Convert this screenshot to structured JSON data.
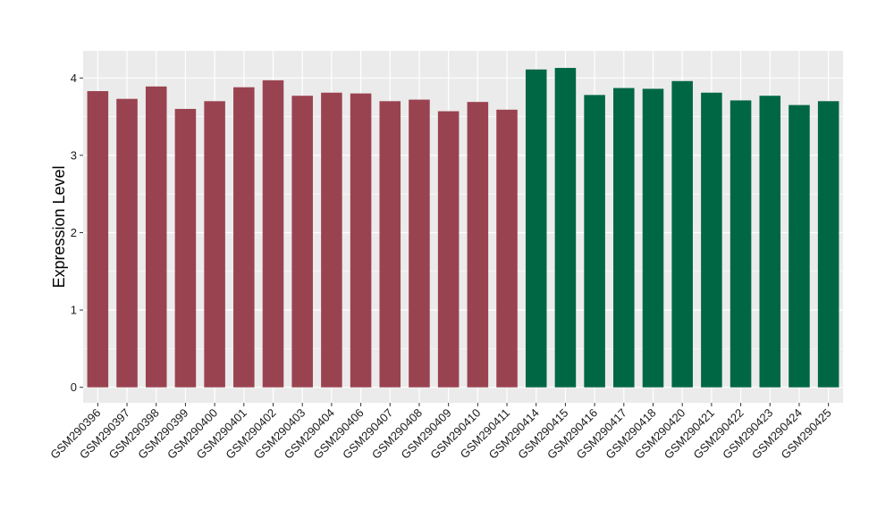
{
  "chart_data": {
    "type": "bar",
    "xlabel": "",
    "ylabel": "Expression Level",
    "ylim": [
      -0.2,
      4.35
    ],
    "yticks": [
      0,
      1,
      2,
      3,
      4
    ],
    "grid": true,
    "legend": "none",
    "colors": {
      "group1": "#9a4350",
      "group2": "#006744",
      "panel": "#ebebeb",
      "gridline": "#ffffff"
    },
    "categories": [
      "GSM290396",
      "GSM290397",
      "GSM290398",
      "GSM290399",
      "GSM290400",
      "GSM290401",
      "GSM290402",
      "GSM290403",
      "GSM290404",
      "GSM290406",
      "GSM290407",
      "GSM290408",
      "GSM290409",
      "GSM290410",
      "GSM290411",
      "GSM290414",
      "GSM290415",
      "GSM290416",
      "GSM290417",
      "GSM290418",
      "GSM290420",
      "GSM290421",
      "GSM290422",
      "GSM290423",
      "GSM290424",
      "GSM290425"
    ],
    "values": [
      3.83,
      3.73,
      3.89,
      3.6,
      3.7,
      3.88,
      3.97,
      3.77,
      3.81,
      3.8,
      3.7,
      3.72,
      3.57,
      3.69,
      3.59,
      4.11,
      4.13,
      3.78,
      3.87,
      3.86,
      3.96,
      3.81,
      3.71,
      3.77,
      3.65,
      3.7
    ],
    "groups": [
      1,
      1,
      1,
      1,
      1,
      1,
      1,
      1,
      1,
      1,
      1,
      1,
      1,
      1,
      1,
      2,
      2,
      2,
      2,
      2,
      2,
      2,
      2,
      2,
      2,
      2
    ]
  }
}
